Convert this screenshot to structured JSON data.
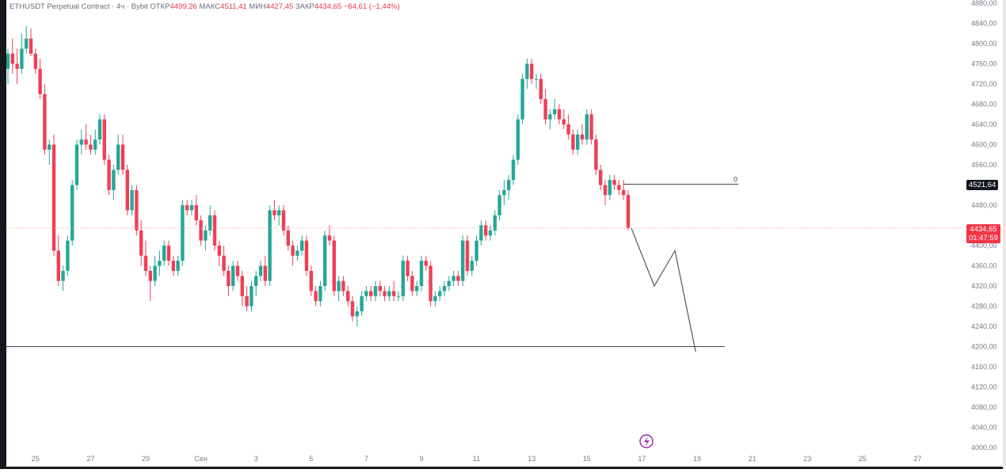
{
  "legend": {
    "symbol": "ETHUSDT Perpetual Contract · 4ч · Bybit",
    "open_label": "ОТКР",
    "open_value": "4499,26",
    "high_label": "МАКС",
    "high_value": "4511,41",
    "low_label": "МИН",
    "low_value": "4427,45",
    "close_label": "ЗАКР",
    "close_value": "4434,65",
    "change": "−64,61 (−1,44%)"
  },
  "badges": {
    "level_price": "4521,64",
    "current_price": "4434,65",
    "countdown": "01:47:59"
  },
  "drawing_label": "0",
  "colors": {
    "up": "#26a69a",
    "down": "#ef3f55",
    "projection": "#555555",
    "level_line": "#444444",
    "current_price_line": "#f3a2ad",
    "badge_dark": "#131722",
    "badge_red": "#f23645",
    "replay_icon": "#9c27b0"
  },
  "icons": {
    "replay": "lightning-circle-icon"
  },
  "chart_data": {
    "type": "candlestick",
    "title": "ETHUSDT Perpetual Contract · 4ч · Bybit",
    "ylim": [
      4000,
      4880
    ],
    "y_ticks": [
      "4000,00",
      "4040,00",
      "4080,00",
      "4120,00",
      "4160,00",
      "4200,00",
      "4240,00",
      "4280,00",
      "4320,00",
      "4360,00",
      "4400,00",
      "4440,00",
      "4480,00",
      "4521,64",
      "4560,00",
      "4600,00",
      "4640,00",
      "4680,00",
      "4720,00",
      "4760,00",
      "4800,00",
      "4840,00",
      "4880,00"
    ],
    "x_ticks": [
      "25",
      "27",
      "29",
      "Сен",
      "3",
      "5",
      "7",
      "9",
      "11",
      "13",
      "15",
      "17",
      "19",
      "21",
      "23",
      "25",
      "27"
    ],
    "x_tick_index": [
      6,
      18,
      30,
      42,
      54,
      66,
      78,
      90,
      102,
      114,
      126,
      138,
      150,
      162,
      174,
      186,
      198
    ],
    "candles": [
      [
        4750,
        4790,
        4720,
        4780
      ],
      [
        4780,
        4810,
        4740,
        4760
      ],
      [
        4760,
        4790,
        4720,
        4750
      ],
      [
        4750,
        4820,
        4740,
        4790
      ],
      [
        4790,
        4835,
        4780,
        4810
      ],
      [
        4810,
        4830,
        4775,
        4780
      ],
      [
        4780,
        4790,
        4740,
        4750
      ],
      [
        4750,
        4770,
        4690,
        4700
      ],
      [
        4700,
        4720,
        4580,
        4590
      ],
      [
        4590,
        4610,
        4560,
        4600
      ],
      [
        4600,
        4620,
        4380,
        4390
      ],
      [
        4390,
        4420,
        4320,
        4330
      ],
      [
        4330,
        4360,
        4310,
        4350
      ],
      [
        4350,
        4420,
        4340,
        4410
      ],
      [
        4410,
        4530,
        4400,
        4520
      ],
      [
        4520,
        4610,
        4510,
        4600
      ],
      [
        4600,
        4630,
        4580,
        4610
      ],
      [
        4610,
        4640,
        4590,
        4600
      ],
      [
        4600,
        4620,
        4580,
        4590
      ],
      [
        4590,
        4630,
        4580,
        4610
      ],
      [
        4610,
        4660,
        4600,
        4650
      ],
      [
        4650,
        4660,
        4560,
        4570
      ],
      [
        4570,
        4580,
        4500,
        4510
      ],
      [
        4510,
        4560,
        4490,
        4550
      ],
      [
        4550,
        4620,
        4540,
        4600
      ],
      [
        4600,
        4620,
        4540,
        4550
      ],
      [
        4550,
        4560,
        4460,
        4470
      ],
      [
        4470,
        4520,
        4460,
        4510
      ],
      [
        4510,
        4520,
        4420,
        4430
      ],
      [
        4430,
        4450,
        4360,
        4380
      ],
      [
        4380,
        4410,
        4340,
        4350
      ],
      [
        4350,
        4360,
        4290,
        4330
      ],
      [
        4330,
        4380,
        4320,
        4360
      ],
      [
        4360,
        4390,
        4340,
        4370
      ],
      [
        4370,
        4410,
        4360,
        4400
      ],
      [
        4400,
        4410,
        4360,
        4370
      ],
      [
        4370,
        4380,
        4340,
        4350
      ],
      [
        4350,
        4380,
        4340,
        4370
      ],
      [
        4370,
        4490,
        4360,
        4480
      ],
      [
        4480,
        4490,
        4460,
        4470
      ],
      [
        4470,
        4490,
        4460,
        4480
      ],
      [
        4480,
        4500,
        4440,
        4450
      ],
      [
        4450,
        4460,
        4400,
        4410
      ],
      [
        4410,
        4440,
        4390,
        4430
      ],
      [
        4430,
        4480,
        4420,
        4460
      ],
      [
        4460,
        4470,
        4390,
        4400
      ],
      [
        4400,
        4410,
        4360,
        4380
      ],
      [
        4380,
        4400,
        4340,
        4350
      ],
      [
        4350,
        4360,
        4300,
        4320
      ],
      [
        4320,
        4370,
        4310,
        4360
      ],
      [
        4360,
        4370,
        4330,
        4340
      ],
      [
        4340,
        4350,
        4280,
        4300
      ],
      [
        4300,
        4320,
        4270,
        4280
      ],
      [
        4280,
        4330,
        4270,
        4320
      ],
      [
        4320,
        4350,
        4300,
        4340
      ],
      [
        4340,
        4370,
        4330,
        4360
      ],
      [
        4360,
        4380,
        4320,
        4330
      ],
      [
        4330,
        4480,
        4320,
        4470
      ],
      [
        4470,
        4490,
        4450,
        4460
      ],
      [
        4460,
        4480,
        4440,
        4470
      ],
      [
        4470,
        4480,
        4420,
        4430
      ],
      [
        4430,
        4440,
        4390,
        4400
      ],
      [
        4400,
        4410,
        4360,
        4380
      ],
      [
        4380,
        4400,
        4370,
        4390
      ],
      [
        4390,
        4420,
        4380,
        4410
      ],
      [
        4410,
        4420,
        4340,
        4350
      ],
      [
        4350,
        4360,
        4300,
        4310
      ],
      [
        4310,
        4320,
        4280,
        4290
      ],
      [
        4290,
        4330,
        4280,
        4320
      ],
      [
        4320,
        4430,
        4310,
        4420
      ],
      [
        4420,
        4440,
        4400,
        4410
      ],
      [
        4410,
        4420,
        4300,
        4310
      ],
      [
        4310,
        4340,
        4290,
        4330
      ],
      [
        4330,
        4340,
        4300,
        4310
      ],
      [
        4310,
        4320,
        4280,
        4290
      ],
      [
        4290,
        4300,
        4250,
        4260
      ],
      [
        4260,
        4280,
        4240,
        4270
      ],
      [
        4270,
        4310,
        4260,
        4300
      ],
      [
        4300,
        4320,
        4290,
        4310
      ],
      [
        4310,
        4320,
        4290,
        4300
      ],
      [
        4300,
        4330,
        4290,
        4320
      ],
      [
        4320,
        4330,
        4300,
        4310
      ],
      [
        4310,
        4320,
        4290,
        4300
      ],
      [
        4300,
        4320,
        4290,
        4310
      ],
      [
        4310,
        4330,
        4290,
        4300
      ],
      [
        4300,
        4310,
        4290,
        4300
      ],
      [
        4300,
        4380,
        4290,
        4370
      ],
      [
        4370,
        4380,
        4330,
        4340
      ],
      [
        4340,
        4350,
        4300,
        4310
      ],
      [
        4310,
        4330,
        4300,
        4320
      ],
      [
        4320,
        4380,
        4310,
        4370
      ],
      [
        4370,
        4380,
        4350,
        4360
      ],
      [
        4360,
        4370,
        4280,
        4290
      ],
      [
        4290,
        4310,
        4280,
        4300
      ],
      [
        4300,
        4320,
        4290,
        4310
      ],
      [
        4310,
        4330,
        4300,
        4320
      ],
      [
        4320,
        4340,
        4310,
        4330
      ],
      [
        4330,
        4350,
        4320,
        4340
      ],
      [
        4340,
        4350,
        4320,
        4330
      ],
      [
        4330,
        4420,
        4320,
        4410
      ],
      [
        4410,
        4420,
        4340,
        4350
      ],
      [
        4350,
        4380,
        4340,
        4370
      ],
      [
        4370,
        4420,
        4360,
        4410
      ],
      [
        4410,
        4450,
        4400,
        4440
      ],
      [
        4440,
        4450,
        4410,
        4420
      ],
      [
        4420,
        4440,
        4410,
        4430
      ],
      [
        4430,
        4470,
        4420,
        4460
      ],
      [
        4460,
        4510,
        4450,
        4500
      ],
      [
        4500,
        4530,
        4480,
        4510
      ],
      [
        4510,
        4540,
        4490,
        4530
      ],
      [
        4530,
        4580,
        4520,
        4570
      ],
      [
        4570,
        4660,
        4560,
        4650
      ],
      [
        4650,
        4740,
        4640,
        4730
      ],
      [
        4730,
        4770,
        4710,
        4760
      ],
      [
        4760,
        4770,
        4720,
        4730
      ],
      [
        4730,
        4740,
        4710,
        4730
      ],
      [
        4730,
        4740,
        4680,
        4690
      ],
      [
        4690,
        4710,
        4640,
        4650
      ],
      [
        4650,
        4670,
        4630,
        4660
      ],
      [
        4660,
        4690,
        4650,
        4670
      ],
      [
        4670,
        4680,
        4640,
        4650
      ],
      [
        4650,
        4670,
        4630,
        4640
      ],
      [
        4640,
        4660,
        4610,
        4620
      ],
      [
        4620,
        4630,
        4580,
        4590
      ],
      [
        4590,
        4630,
        4580,
        4620
      ],
      [
        4620,
        4640,
        4600,
        4610
      ],
      [
        4610,
        4670,
        4600,
        4660
      ],
      [
        4660,
        4670,
        4600,
        4610
      ],
      [
        4610,
        4620,
        4540,
        4550
      ],
      [
        4550,
        4560,
        4510,
        4520
      ],
      [
        4520,
        4530,
        4480,
        4500
      ],
      [
        4500,
        4540,
        4490,
        4530
      ],
      [
        4530,
        4540,
        4510,
        4520
      ],
      [
        4520,
        4530,
        4500,
        4510
      ],
      [
        4510,
        4530,
        4490,
        4500
      ],
      [
        4500,
        4510,
        4430,
        4435
      ]
    ],
    "horizontal_levels": [
      4521.64,
      4200,
      4434.65
    ],
    "projection_path": [
      [
        4434.65,
        0
      ],
      [
        4320,
        1
      ],
      [
        4390,
        1.9
      ],
      [
        4190,
        2.8
      ]
    ]
  }
}
